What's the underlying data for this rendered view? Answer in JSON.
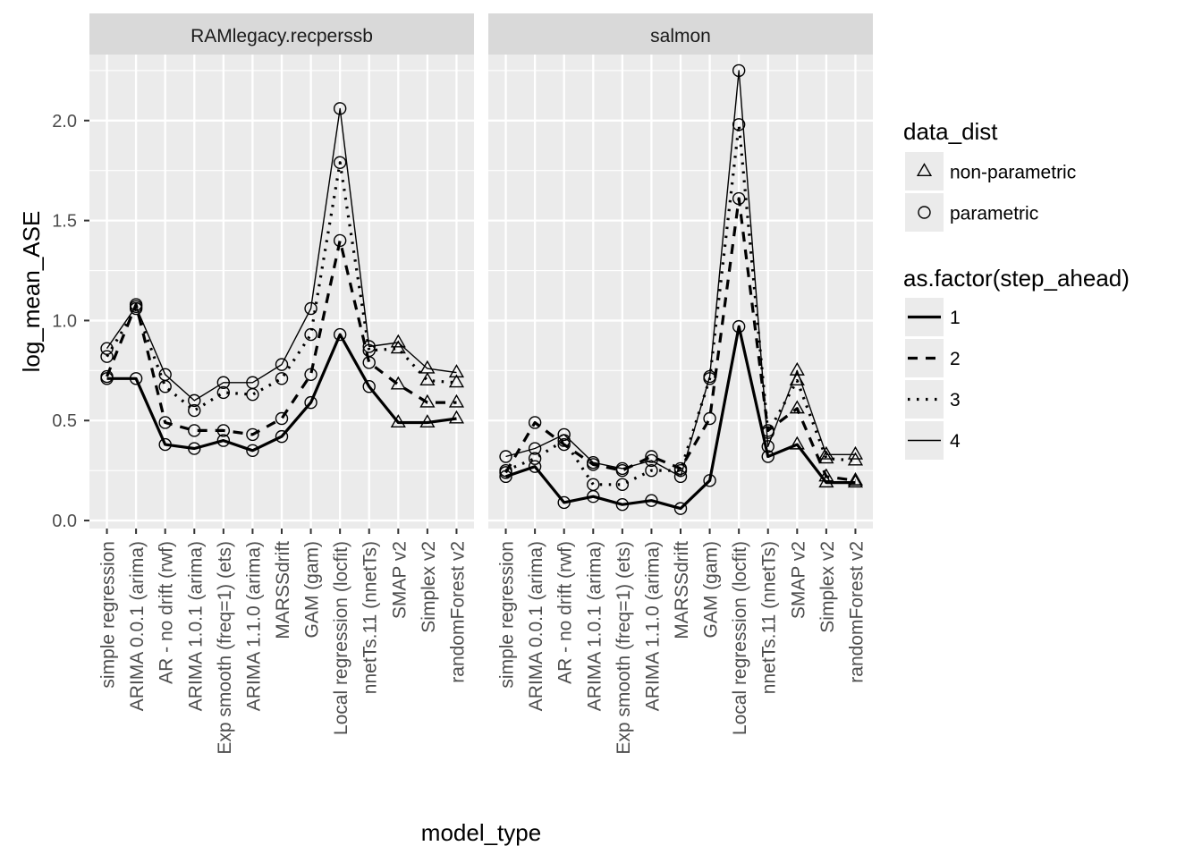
{
  "chart_data": {
    "type": "line",
    "xlabel": "model_type",
    "ylabel": "log_mean_ASE",
    "ylim": [
      -0.04,
      2.33
    ],
    "y_ticks": [
      0.0,
      0.5,
      1.0,
      1.5,
      2.0
    ],
    "y_tick_labels": [
      "0.0",
      "0.5",
      "1.0",
      "1.5",
      "2.0"
    ],
    "grid": true,
    "categories": [
      "simple regression",
      "ARIMA 0.0.1 (arima)",
      "AR - no drift (rwf)",
      "ARIMA 1.0.1 (arima)",
      "Exp smooth (freq=1) (ets)",
      "ARIMA 1.1.0 (arima)",
      "MARSSdrift",
      "GAM (gam)",
      "Local regression (locfit)",
      "nnetTs.11 (nnetTs)",
      "SMAP v2",
      "Simplex v2",
      "randomForest v2"
    ],
    "dist_by_category": [
      "parametric",
      "parametric",
      "parametric",
      "parametric",
      "parametric",
      "parametric",
      "parametric",
      "parametric",
      "parametric",
      "parametric",
      "non-parametric",
      "non-parametric",
      "non-parametric"
    ],
    "panels": [
      {
        "title": "RAMlegacy.recperssb",
        "series": [
          {
            "name": "1",
            "values": [
              0.71,
              0.71,
              0.38,
              0.36,
              0.4,
              0.35,
              0.42,
              0.59,
              0.93,
              0.67,
              0.49,
              0.49,
              0.51
            ]
          },
          {
            "name": "2",
            "values": [
              0.72,
              1.08,
              0.49,
              0.45,
              0.45,
              0.43,
              0.51,
              0.73,
              1.4,
              0.79,
              0.68,
              0.59,
              0.59
            ]
          },
          {
            "name": "3",
            "values": [
              0.82,
              1.06,
              0.67,
              0.55,
              0.64,
              0.63,
              0.71,
              0.93,
              1.79,
              0.85,
              0.86,
              0.7,
              0.69
            ]
          },
          {
            "name": "4",
            "values": [
              0.86,
              1.07,
              0.73,
              0.6,
              0.69,
              0.69,
              0.78,
              1.06,
              2.06,
              0.87,
              0.89,
              0.76,
              0.74
            ]
          }
        ]
      },
      {
        "title": "salmon",
        "series": [
          {
            "name": "1",
            "values": [
              0.22,
              0.27,
              0.09,
              0.12,
              0.08,
              0.1,
              0.06,
              0.2,
              0.97,
              0.32,
              0.38,
              0.19,
              0.19
            ]
          },
          {
            "name": "2",
            "values": [
              0.24,
              0.49,
              0.38,
              0.28,
              0.25,
              0.32,
              0.26,
              0.51,
              1.61,
              0.45,
              0.56,
              0.22,
              0.2
            ]
          },
          {
            "name": "3",
            "values": [
              0.25,
              0.31,
              0.4,
              0.18,
              0.18,
              0.25,
              0.25,
              0.71,
              1.98,
              0.44,
              0.7,
              0.31,
              0.3
            ]
          },
          {
            "name": "4",
            "values": [
              0.32,
              0.36,
              0.43,
              0.29,
              0.26,
              0.3,
              0.22,
              0.72,
              2.25,
              0.37,
              0.75,
              0.33,
              0.33
            ]
          }
        ]
      }
    ],
    "legend": {
      "placement": "right",
      "shape_title": "data_dist",
      "shape_items": [
        {
          "label": "non-parametric",
          "shape": "triangle"
        },
        {
          "label": "parametric",
          "shape": "circle"
        }
      ],
      "line_title": "as.factor(step_ahead)",
      "line_items": [
        {
          "label": "1",
          "style": "thick-solid"
        },
        {
          "label": "2",
          "style": "dashed"
        },
        {
          "label": "3",
          "style": "dotted"
        },
        {
          "label": "4",
          "style": "thin-solid"
        }
      ]
    },
    "colors": {
      "panel_bg": "#ebebeb",
      "strip_bg": "#d9d9d9",
      "grid": "#ffffff",
      "ink": "#000000",
      "axis_text": "#4d4d4d",
      "legend_key_bg": "#ebebeb"
    }
  }
}
